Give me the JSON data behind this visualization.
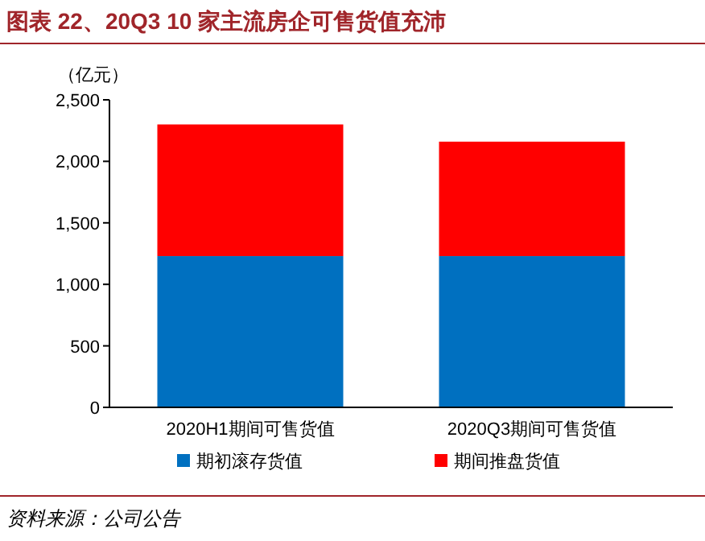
{
  "chart_data": {
    "type": "bar",
    "title": "图表 22、20Q3 10 家主流房企可售货值充沛",
    "ylabel": "（亿元）",
    "categories": [
      "2020H1期间可售货值",
      "2020Q3期间可售货值"
    ],
    "stacked": true,
    "series": [
      {
        "name": "期初滚存货值",
        "color": "#0070c0",
        "values": [
          1230,
          1230
        ]
      },
      {
        "name": "期间推盘货值",
        "color": "#ff0000",
        "values": [
          1070,
          930
        ]
      }
    ],
    "ylim": [
      0,
      2500
    ],
    "yticks": [
      0,
      500,
      {
        "value": 1000,
        "label": "1,000"
      },
      {
        "value": 1500,
        "label": "1,500"
      },
      {
        "value": 2000,
        "label": "2,000"
      },
      {
        "value": 2500,
        "label": "2,500"
      }
    ],
    "legend": "bottom",
    "annotations": [
      "资料来源：公司公告"
    ]
  }
}
